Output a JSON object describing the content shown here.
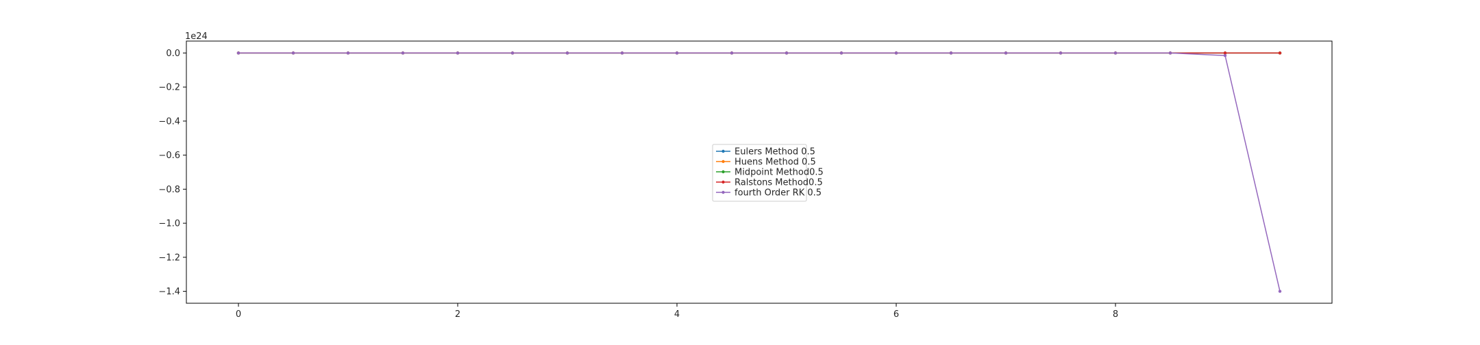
{
  "chart_data": {
    "type": "line",
    "title": "",
    "xlabel": "",
    "ylabel": "",
    "y_offset_text": "1e24",
    "xlim": [
      -0.475,
      9.975
    ],
    "ylim": [
      -1.47e+24,
      7e+22
    ],
    "xticks": [
      0,
      2,
      4,
      6,
      8
    ],
    "xtick_labels": [
      "0",
      "2",
      "4",
      "6",
      "8"
    ],
    "yticks": [
      0.0,
      -2e+23,
      -4e+23,
      -6e+23,
      -8e+23,
      -1e+24,
      -1.2e+24,
      -1.4e+24
    ],
    "ytick_labels": [
      "0.0",
      "−0.2",
      "−0.4",
      "−0.6",
      "−0.8",
      "−1.0",
      "−1.2",
      "−1.4"
    ],
    "grid": false,
    "legend_position": "center",
    "x": [
      0,
      0.5,
      1.0,
      1.5,
      2.0,
      2.5,
      3.0,
      3.5,
      4.0,
      4.5,
      5.0,
      5.5,
      6.0,
      6.5,
      7.0,
      7.5,
      8.0,
      8.5,
      9.0,
      9.5
    ],
    "series": [
      {
        "name": "Eulers Method 0.5",
        "color": "#1f77b4",
        "values": [
          0,
          0,
          0,
          0,
          0,
          0,
          0,
          0,
          0,
          0,
          0,
          0,
          0,
          0,
          0,
          0,
          0,
          0,
          0,
          0
        ]
      },
      {
        "name": "Huens Method 0.5",
        "color": "#ff7f0e",
        "values": [
          0,
          0,
          0,
          0,
          0,
          0,
          0,
          0,
          0,
          0,
          0,
          0,
          0,
          0,
          0,
          0,
          0,
          0,
          0,
          0
        ]
      },
      {
        "name": "Midpoint Method0.5",
        "color": "#2ca02c",
        "values": [
          0,
          0,
          0,
          0,
          0,
          0,
          0,
          0,
          0,
          0,
          0,
          0,
          0,
          0,
          0,
          0,
          0,
          0,
          0,
          0
        ]
      },
      {
        "name": "Ralstons Method0.5",
        "color": "#d62728",
        "values": [
          0,
          0,
          0,
          0,
          0,
          0,
          0,
          0,
          0,
          0,
          0,
          0,
          0,
          0,
          0,
          0,
          0,
          0,
          0,
          0
        ]
      },
      {
        "name": "fourth Order RK 0.5",
        "color": "#9467bd",
        "values": [
          0,
          0,
          0,
          0,
          0,
          0,
          0,
          0,
          0,
          0,
          0,
          0,
          0,
          0,
          0,
          0,
          0,
          0,
          -1.5e+22,
          -1.4e+24
        ]
      }
    ]
  }
}
